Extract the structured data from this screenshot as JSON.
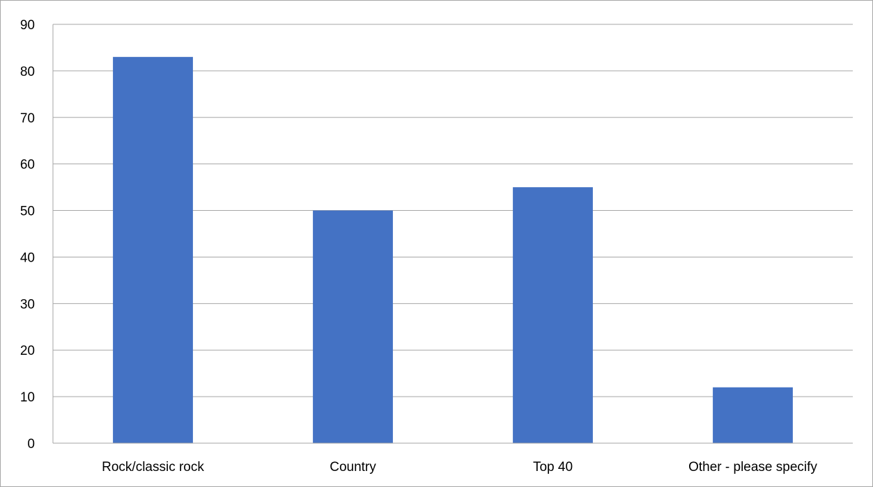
{
  "chart_data": {
    "type": "bar",
    "title": "",
    "xlabel": "",
    "ylabel": "",
    "categories": [
      "Rock/classic rock",
      "Country",
      "Top 40",
      "Other - please specify"
    ],
    "values": [
      83,
      50,
      55,
      12
    ],
    "ylim": [
      0,
      90
    ],
    "yticks": [
      "0",
      "10",
      "20",
      "30",
      "40",
      "50",
      "60",
      "70",
      "80",
      "90"
    ],
    "grid": true,
    "legend": "none",
    "bar_color": "#4472C4",
    "grid_color": "#a6a6a6"
  }
}
